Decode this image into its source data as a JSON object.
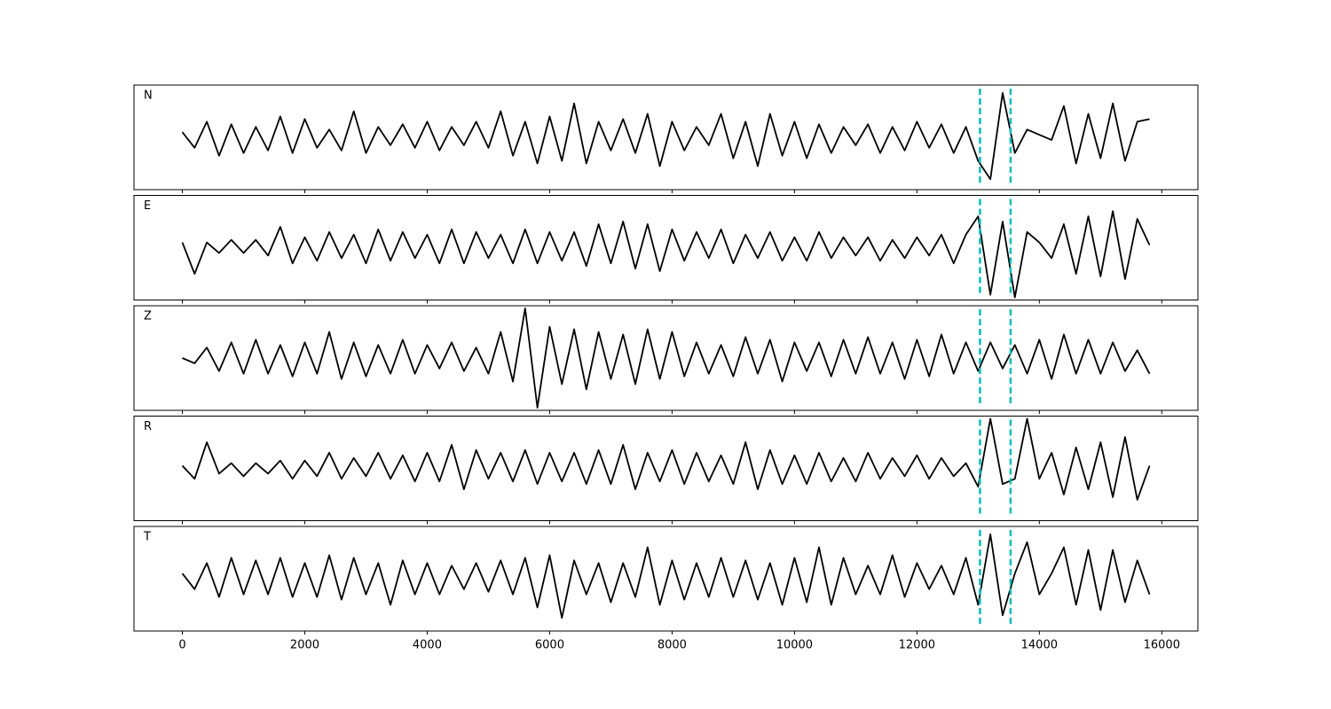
{
  "chart_data": {
    "type": "line",
    "x": [
      0,
      200,
      400,
      600,
      800,
      1000,
      1200,
      1400,
      1600,
      1800,
      2000,
      2200,
      2400,
      2600,
      2800,
      3000,
      3200,
      3400,
      3600,
      3800,
      4000,
      4200,
      4400,
      4600,
      4800,
      5000,
      5200,
      5400,
      5600,
      5800,
      6000,
      6200,
      6400,
      6600,
      6800,
      7000,
      7200,
      7400,
      7600,
      7800,
      8000,
      8200,
      8400,
      8600,
      8800,
      9000,
      9200,
      9400,
      9600,
      9800,
      10000,
      10200,
      10400,
      10600,
      10800,
      11000,
      11200,
      11400,
      11600,
      11800,
      12000,
      12200,
      12400,
      12600,
      12800,
      13000,
      13200,
      13400,
      13600,
      13800,
      14000,
      14200,
      14400,
      14600,
      14800,
      15000,
      15200,
      15400,
      15600,
      15800
    ],
    "xlim": [
      -790,
      16590
    ],
    "xticks": [
      0,
      2000,
      4000,
      6000,
      8000,
      10000,
      12000,
      14000,
      16000
    ],
    "ylim": [
      -1,
      1
    ],
    "color": "#000000",
    "markers": {
      "x": [
        13030,
        13530
      ],
      "color": "#00bfbf"
    },
    "series": [
      {
        "name": "N",
        "values": [
          0.1,
          -0.2,
          0.3,
          -0.35,
          0.25,
          -0.3,
          0.2,
          -0.25,
          0.4,
          -0.3,
          0.35,
          -0.2,
          0.15,
          -0.25,
          0.5,
          -0.3,
          0.2,
          -0.15,
          0.25,
          -0.2,
          0.3,
          -0.25,
          0.2,
          -0.15,
          0.3,
          -0.2,
          0.5,
          -0.35,
          0.3,
          -0.5,
          0.4,
          -0.45,
          0.65,
          -0.5,
          0.3,
          -0.25,
          0.35,
          -0.3,
          0.45,
          -0.55,
          0.3,
          -0.25,
          0.2,
          -0.15,
          0.45,
          -0.4,
          0.3,
          -0.55,
          0.45,
          -0.35,
          0.3,
          -0.4,
          0.25,
          -0.3,
          0.2,
          -0.15,
          0.25,
          -0.3,
          0.2,
          -0.25,
          0.3,
          -0.2,
          0.25,
          -0.3,
          0.2,
          -0.45,
          -0.8,
          0.85,
          -0.3,
          0.15,
          0.05,
          -0.05,
          0.6,
          -0.5,
          0.45,
          -0.4,
          0.65,
          -0.45,
          0.3,
          0.35
        ]
      },
      {
        "name": "E",
        "values": [
          0.1,
          -0.5,
          0.1,
          -0.1,
          0.15,
          -0.1,
          0.15,
          -0.15,
          0.4,
          -0.3,
          0.2,
          -0.25,
          0.3,
          -0.2,
          0.25,
          -0.3,
          0.35,
          -0.25,
          0.3,
          -0.2,
          0.25,
          -0.3,
          0.35,
          -0.3,
          0.3,
          -0.2,
          0.25,
          -0.3,
          0.35,
          -0.3,
          0.3,
          -0.25,
          0.3,
          -0.35,
          0.45,
          -0.3,
          0.5,
          -0.4,
          0.45,
          -0.45,
          0.35,
          -0.25,
          0.3,
          -0.2,
          0.35,
          -0.3,
          0.25,
          -0.2,
          0.3,
          -0.25,
          0.2,
          -0.25,
          0.3,
          -0.2,
          0.2,
          -0.15,
          0.2,
          -0.25,
          0.15,
          -0.2,
          0.2,
          -0.15,
          0.25,
          -0.3,
          0.25,
          0.6,
          -0.9,
          0.5,
          -0.95,
          0.3,
          0.1,
          -0.2,
          0.45,
          -0.5,
          0.6,
          -0.55,
          0.7,
          -0.6,
          0.55,
          0.05
        ]
      },
      {
        "name": "Z",
        "values": [
          0,
          -0.1,
          0.2,
          -0.25,
          0.3,
          -0.3,
          0.35,
          -0.3,
          0.25,
          -0.35,
          0.3,
          -0.3,
          0.5,
          -0.4,
          0.3,
          -0.35,
          0.25,
          -0.3,
          0.35,
          -0.3,
          0.25,
          -0.2,
          0.3,
          -0.25,
          0.2,
          -0.3,
          0.5,
          -0.45,
          0.95,
          -0.95,
          0.6,
          -0.5,
          0.55,
          -0.6,
          0.5,
          -0.4,
          0.45,
          -0.5,
          0.55,
          -0.4,
          0.5,
          -0.35,
          0.3,
          -0.3,
          0.25,
          -0.35,
          0.4,
          -0.3,
          0.35,
          -0.45,
          0.3,
          -0.25,
          0.3,
          -0.35,
          0.35,
          -0.3,
          0.4,
          -0.3,
          0.3,
          -0.4,
          0.35,
          -0.35,
          0.45,
          -0.3,
          0.3,
          -0.25,
          0.3,
          -0.2,
          0.25,
          -0.3,
          0.35,
          -0.4,
          0.45,
          -0.3,
          0.35,
          -0.3,
          0.3,
          -0.25,
          0.15,
          -0.3
        ]
      },
      {
        "name": "R",
        "values": [
          0.05,
          -0.2,
          0.5,
          -0.1,
          0.1,
          -0.15,
          0.1,
          -0.1,
          0.15,
          -0.2,
          0.15,
          -0.15,
          0.3,
          -0.2,
          0.2,
          -0.15,
          0.3,
          -0.2,
          0.25,
          -0.25,
          0.3,
          -0.25,
          0.45,
          -0.4,
          0.35,
          -0.2,
          0.3,
          -0.25,
          0.35,
          -0.3,
          0.3,
          -0.25,
          0.3,
          -0.3,
          0.35,
          -0.3,
          0.45,
          -0.4,
          0.3,
          -0.25,
          0.35,
          -0.3,
          0.3,
          -0.25,
          0.25,
          -0.3,
          0.5,
          -0.4,
          0.35,
          -0.3,
          0.25,
          -0.3,
          0.3,
          -0.25,
          0.2,
          -0.25,
          0.3,
          -0.2,
          0.2,
          -0.15,
          0.25,
          -0.2,
          0.2,
          -0.15,
          0.1,
          -0.35,
          0.95,
          -0.3,
          -0.2,
          0.95,
          -0.2,
          0.3,
          -0.5,
          0.4,
          -0.4,
          0.5,
          -0.55,
          0.6,
          -0.6,
          0.05
        ]
      },
      {
        "name": "T",
        "values": [
          0.1,
          -0.2,
          0.3,
          -0.35,
          0.4,
          -0.3,
          0.35,
          -0.3,
          0.4,
          -0.35,
          0.3,
          -0.35,
          0.45,
          -0.4,
          0.4,
          -0.3,
          0.3,
          -0.5,
          0.35,
          -0.3,
          0.3,
          -0.3,
          0.25,
          -0.2,
          0.3,
          -0.25,
          0.35,
          -0.3,
          0.4,
          -0.55,
          0.45,
          -0.75,
          0.35,
          -0.3,
          0.3,
          -0.45,
          0.3,
          -0.35,
          0.6,
          -0.5,
          0.35,
          -0.4,
          0.3,
          -0.35,
          0.4,
          -0.35,
          0.35,
          -0.4,
          0.3,
          -0.5,
          0.4,
          -0.45,
          0.6,
          -0.5,
          0.4,
          -0.3,
          0.25,
          -0.3,
          0.45,
          -0.35,
          0.3,
          -0.2,
          0.25,
          -0.3,
          0.4,
          -0.5,
          0.85,
          -0.7,
          0.1,
          0.7,
          -0.3,
          0.1,
          0.6,
          -0.5,
          0.55,
          -0.6,
          0.55,
          -0.45,
          0.35,
          -0.3
        ]
      }
    ]
  }
}
